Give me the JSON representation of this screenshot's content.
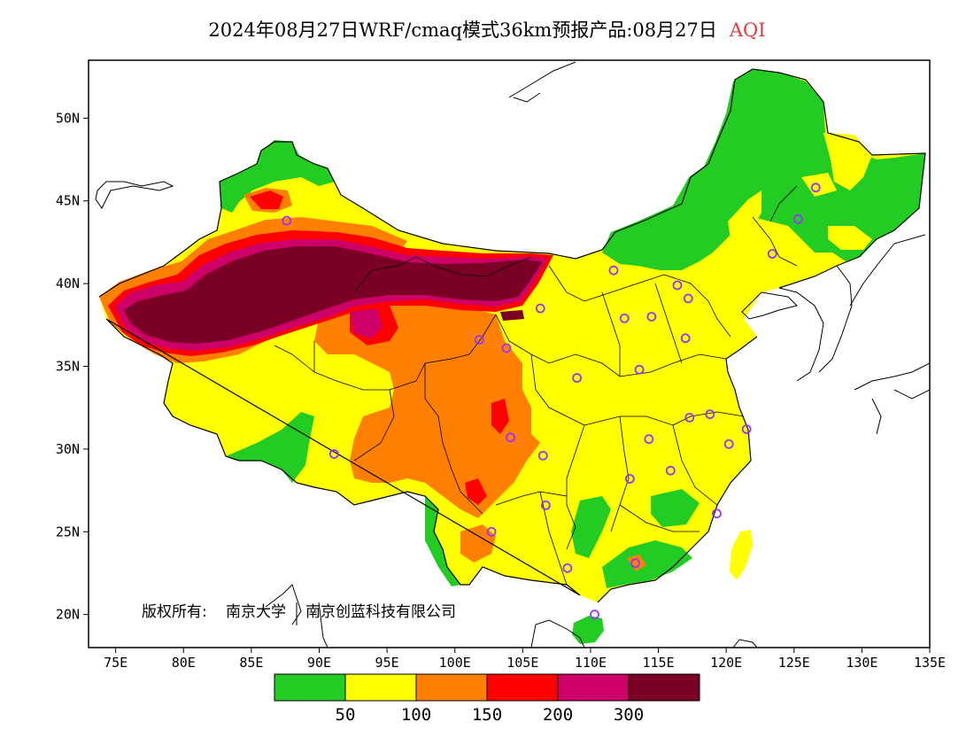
{
  "title": {
    "main": "2024年08月27日WRF/cmaq模式36km预报产品:08月27日",
    "variable": "AQI"
  },
  "axes": {
    "x_ticks": [
      "75E",
      "80E",
      "85E",
      "90E",
      "95E",
      "100E",
      "105E",
      "110E",
      "115E",
      "120E",
      "125E",
      "130E",
      "135E"
    ],
    "y_ticks": [
      "50N",
      "45N",
      "40N",
      "35N",
      "30N",
      "25N",
      "20N"
    ],
    "x_range": [
      73,
      135
    ],
    "y_range": [
      18,
      53.5
    ]
  },
  "credit": {
    "owner_label": "版权所有:",
    "org1": "南京大学",
    "org2": "南京创蓝科技有限公司"
  },
  "legend": {
    "colors": [
      "#22cc22",
      "#ffff00",
      "#ff8000",
      "#ff0000",
      "#cc0066",
      "#7a0026"
    ],
    "labels": [
      "50",
      "100",
      "150",
      "200",
      "300"
    ]
  },
  "stations": [
    [
      126.6,
      45.8
    ],
    [
      125.3,
      43.9
    ],
    [
      123.4,
      41.8
    ],
    [
      87.6,
      43.8
    ],
    [
      111.7,
      40.8
    ],
    [
      116.4,
      39.9
    ],
    [
      117.2,
      39.1
    ],
    [
      114.5,
      38.0
    ],
    [
      112.5,
      37.9
    ],
    [
      117.0,
      36.7
    ],
    [
      106.3,
      38.5
    ],
    [
      103.8,
      36.1
    ],
    [
      101.8,
      36.6
    ],
    [
      109.0,
      34.3
    ],
    [
      113.6,
      34.8
    ],
    [
      117.3,
      31.9
    ],
    [
      118.8,
      32.1
    ],
    [
      121.5,
      31.2
    ],
    [
      120.2,
      30.3
    ],
    [
      114.3,
      30.6
    ],
    [
      112.9,
      28.2
    ],
    [
      115.9,
      28.7
    ],
    [
      119.3,
      26.1
    ],
    [
      106.7,
      26.6
    ],
    [
      102.7,
      25.0
    ],
    [
      108.3,
      22.8
    ],
    [
      113.3,
      23.1
    ],
    [
      110.3,
      20.0
    ],
    [
      104.1,
      30.7
    ],
    [
      106.5,
      29.6
    ],
    [
      91.1,
      29.7
    ]
  ]
}
